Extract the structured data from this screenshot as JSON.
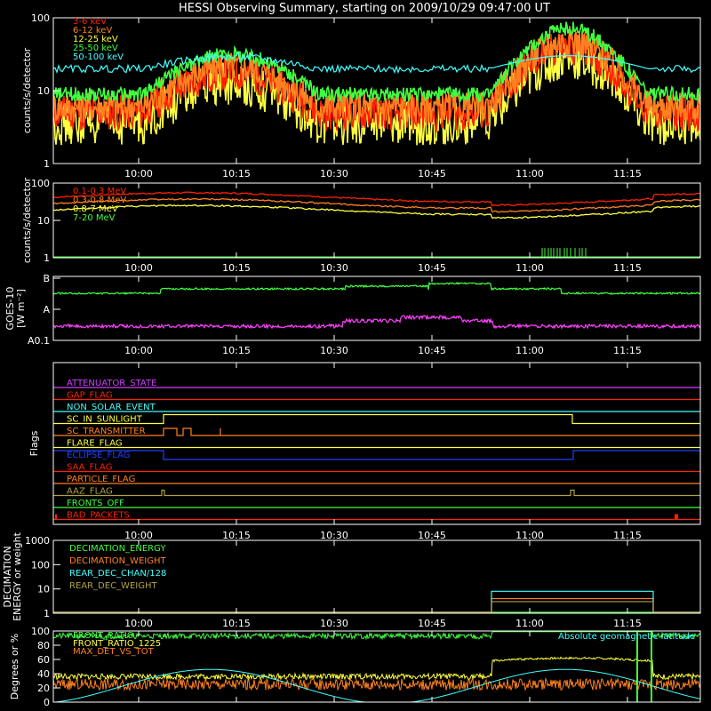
{
  "title": "HESSI Observing Summary, starting on 2009/10/29 09:47:00 UT",
  "time_ticks": [
    "10:00",
    "10:15",
    "10:30",
    "10:45",
    "11:00",
    "11:15"
  ],
  "chart_data": [
    {
      "name": "hxr",
      "type": "line",
      "ylabel": "counts/s/detector",
      "scale": "log",
      "ylim": [
        1,
        100
      ],
      "ytick_labels": [
        "1",
        "10",
        "100"
      ],
      "legend": [
        {
          "label": "3-6 keV",
          "color": "#ff2000"
        },
        {
          "label": "6-12 keV",
          "color": "#ff8020"
        },
        {
          "label": "12-25 keV",
          "color": "#ffff40"
        },
        {
          "label": "25-50 keV",
          "color": "#40ff40"
        },
        {
          "label": "50-100 keV",
          "color": "#40ffff"
        }
      ]
    },
    {
      "name": "gamma",
      "type": "line",
      "ylabel": "counts/s/detector",
      "scale": "log",
      "ylim": [
        1,
        100
      ],
      "ytick_labels": [
        "1",
        "10",
        "100"
      ],
      "legend": [
        {
          "label": "0.1-0.3 MeV",
          "color": "#ff2000"
        },
        {
          "label": "0.3-0.8 MeV",
          "color": "#ff8020"
        },
        {
          "label": "0.8-7 MeV",
          "color": "#ffff40"
        },
        {
          "label": "7-20 MeV",
          "color": "#40ff40"
        }
      ]
    },
    {
      "name": "goes",
      "type": "line",
      "ylabel_lines": [
        "GOES-10",
        "[W m⁻²]"
      ],
      "ytick_labels": [
        "A0.1",
        "A",
        "B"
      ],
      "series_colors": [
        "#40ff40",
        "#ff40ff"
      ]
    },
    {
      "name": "flags",
      "type": "line",
      "ylabel": "Flags",
      "flags": [
        {
          "label": "ATTENUATOR_STATE",
          "color": "#d040ff"
        },
        {
          "label": "GAP_FLAG",
          "color": "#ff2000"
        },
        {
          "label": "NON_SOLAR_EVENT",
          "color": "#40ffff"
        },
        {
          "label": "SC_IN_SUNLIGHT",
          "color": "#ffff40"
        },
        {
          "label": "SC_TRANSMITTER",
          "color": "#ff8020"
        },
        {
          "label": "FLARE_FLAG",
          "color": "#ffff40"
        },
        {
          "label": "ECLIPSE_FLAG",
          "color": "#2040ff"
        },
        {
          "label": "SAA_FLAG",
          "color": "#ff2000"
        },
        {
          "label": "PARTICLE_FLAG",
          "color": "#ff8020"
        },
        {
          "label": "AAZ_FLAG",
          "color": "#b0a040"
        },
        {
          "label": "FRONTS_OFF",
          "color": "#40ff40"
        },
        {
          "label": "BAD_PACKETS",
          "color": "#ff2000"
        }
      ]
    },
    {
      "name": "decimation",
      "type": "line",
      "ylabel_lines": [
        "DECIMATION",
        "ENERGY or weight"
      ],
      "scale": "log",
      "ylim": [
        1,
        1000
      ],
      "ytick_labels": [
        "1",
        "10",
        "100",
        "1000"
      ],
      "legend": [
        {
          "label": "DECIMATION_ENERGY",
          "color": "#40ff40"
        },
        {
          "label": "DECIMATION_WEIGHT",
          "color": "#ff8020"
        },
        {
          "label": "REAR_DEC_CHAN/128",
          "color": "#40ffff"
        },
        {
          "label": "REAR_DEC_WEIGHT",
          "color": "#b0a040"
        }
      ]
    },
    {
      "name": "geometry",
      "type": "line",
      "ylabel": "Degrees or %",
      "ylim": [
        0,
        100
      ],
      "ytick_labels": [
        "0",
        "20",
        "40",
        "60",
        "80",
        "100"
      ],
      "legend": [
        {
          "label": "FRONT_RATIO",
          "color": "#40ff40"
        },
        {
          "label": "FRONT_RATIO_1225",
          "color": "#ffff40"
        },
        {
          "label": "MAX_DET_VS_TOT",
          "color": "#ff8020"
        }
      ],
      "annotation": {
        "label": "Absolute geomagnetic latitude",
        "color": "#40ffff"
      }
    }
  ]
}
